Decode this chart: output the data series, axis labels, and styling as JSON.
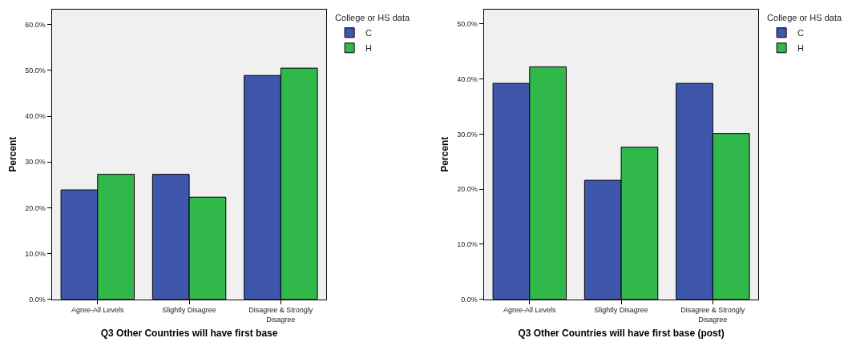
{
  "chart_data": [
    {
      "type": "bar",
      "xlabel": "Q3 Other Countries will have first base",
      "ylabel": "Percent",
      "legend_title": "College or HS data",
      "legend": "top right",
      "grid": false,
      "categories": [
        "Agree-All Levels",
        "Slightly Disagree",
        "Disagree & Strongly Disagree"
      ],
      "ylim": [
        0,
        63.3
      ],
      "yticks": [
        {
          "value": 0,
          "label": "0.0%"
        },
        {
          "value": 10,
          "label": "10.0%"
        },
        {
          "value": 20,
          "label": "20.0%"
        },
        {
          "value": 30,
          "label": "30.0%"
        },
        {
          "value": 40,
          "label": "40.0%"
        },
        {
          "value": 50,
          "label": "50.0%"
        },
        {
          "value": 60,
          "label": "60.0%"
        }
      ],
      "series": [
        {
          "name": "C",
          "color": "#3f57ab",
          "values": [
            23.9,
            27.3,
            48.9
          ]
        },
        {
          "name": "H",
          "color": "#31b84a",
          "values": [
            27.3,
            22.3,
            50.5
          ]
        }
      ]
    },
    {
      "type": "bar",
      "xlabel": "Q3 Other Countries will have first base (post)",
      "ylabel": "Percent",
      "legend_title": "College or HS data",
      "legend": "top right",
      "grid": false,
      "categories": [
        "Agree-All Levels",
        "Slightly Disagree",
        "Disagree & Strongly Disagree"
      ],
      "ylim": [
        0,
        52.6
      ],
      "yticks": [
        {
          "value": 0,
          "label": "0.0%"
        },
        {
          "value": 10,
          "label": "10.0%"
        },
        {
          "value": 20,
          "label": "20.0%"
        },
        {
          "value": 30,
          "label": "30.0%"
        },
        {
          "value": 40,
          "label": "40.0%"
        },
        {
          "value": 50,
          "label": "50.0%"
        }
      ],
      "series": [
        {
          "name": "C",
          "color": "#3f57ab",
          "values": [
            39.2,
            21.6,
            39.2
          ]
        },
        {
          "name": "H",
          "color": "#31b84a",
          "values": [
            42.2,
            27.6,
            30.1
          ]
        }
      ]
    }
  ]
}
